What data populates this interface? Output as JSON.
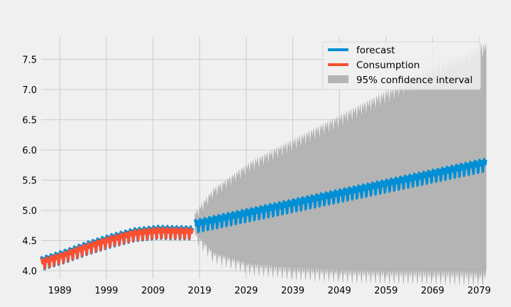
{
  "chart_data": {
    "type": "line",
    "title": "",
    "xlabel": "",
    "ylabel": "",
    "xlim": [
      1985,
      2080.5
    ],
    "ylim": [
      3.87,
      7.87
    ],
    "x_ticks": [
      1989,
      1999,
      2009,
      2019,
      2029,
      2039,
      2049,
      2059,
      2069,
      2079
    ],
    "y_ticks": [
      4.0,
      4.5,
      5.0,
      5.5,
      6.0,
      6.5,
      7.0,
      7.5
    ],
    "grid": true,
    "legend_position": "top-right",
    "series": [
      {
        "name": "forecast",
        "color": "#008fd5",
        "trend": [
          [
            1985,
            4.12
          ],
          [
            1990,
            4.24
          ],
          [
            1995,
            4.38
          ],
          [
            2000,
            4.5
          ],
          [
            2005,
            4.6
          ],
          [
            2010,
            4.64
          ],
          [
            2017.5,
            4.63
          ],
          [
            2018,
            4.75
          ],
          [
            2080.5,
            5.77
          ]
        ],
        "seasonal_amplitude": 0.13
      },
      {
        "name": "Consumption",
        "color": "#fc4f30",
        "trend": [
          [
            1985,
            4.12
          ],
          [
            1990,
            4.24
          ],
          [
            1995,
            4.38
          ],
          [
            2000,
            4.5
          ],
          [
            2005,
            4.6
          ],
          [
            2010,
            4.64
          ],
          [
            2017.5,
            4.63
          ]
        ],
        "seasonal_amplitude": 0.11
      },
      {
        "name": "95% confidence interval",
        "color": "#b4b4b4",
        "lower_envelope": [
          [
            2018,
            4.6
          ],
          [
            2022,
            4.25
          ],
          [
            2030,
            4.05
          ],
          [
            2040,
            3.97
          ],
          [
            2050,
            3.93
          ],
          [
            2060,
            3.91
          ],
          [
            2070,
            3.9
          ],
          [
            2080.5,
            3.88
          ]
        ],
        "upper_envelope": [
          [
            2018,
            4.9
          ],
          [
            2022,
            5.3
          ],
          [
            2030,
            5.75
          ],
          [
            2040,
            6.15
          ],
          [
            2050,
            6.55
          ],
          [
            2060,
            6.95
          ],
          [
            2070,
            7.35
          ],
          [
            2080.5,
            7.7
          ]
        ],
        "center": [
          [
            2018,
            4.75
          ],
          [
            2080.5,
            5.77
          ]
        ]
      }
    ]
  }
}
